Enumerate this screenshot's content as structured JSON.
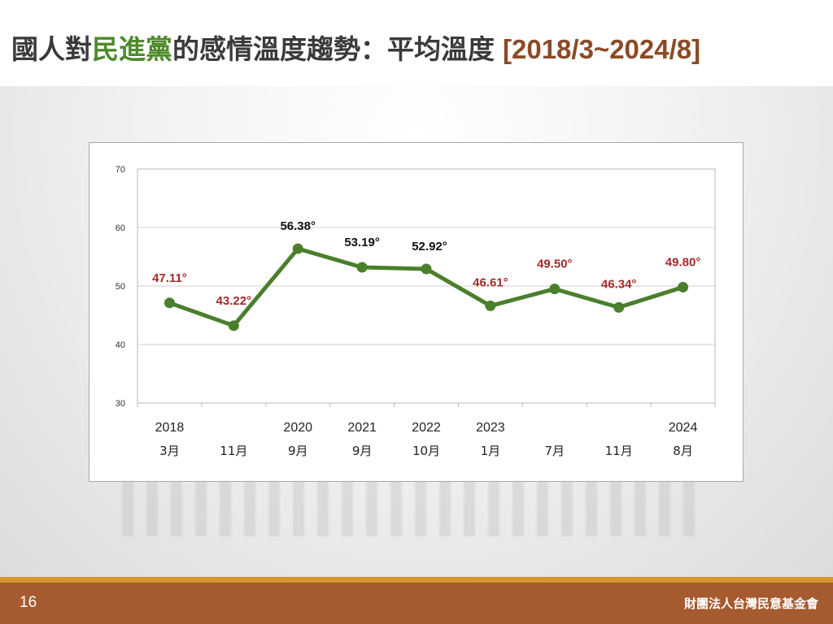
{
  "header": {
    "title_part1": "國人對",
    "title_party": "民進黨",
    "title_part2": "的感情溫度趨勢：平均溫度",
    "title_range": "[2018/3~2024/8]"
  },
  "footer": {
    "page_number": "16",
    "organization": "財團法人台灣民意基金會"
  },
  "colors": {
    "title_text": "#3a3a3a",
    "party_green": "#4f8a2a",
    "range_brown": "#8a4a26",
    "line_green": "#4a7f2b",
    "label_red": "#a52a2a",
    "label_black": "#111111",
    "footer_brown": "#a65a2f",
    "footer_gold": "#d4962d"
  },
  "chart_data": {
    "type": "line",
    "ylim": [
      30,
      70
    ],
    "yticks": [
      "30",
      "40",
      "50",
      "60",
      "70"
    ],
    "categories": [
      {
        "year": "2018",
        "month": "3月"
      },
      {
        "year": "",
        "month": "11月"
      },
      {
        "year": "2020",
        "month": "9月"
      },
      {
        "year": "2021",
        "month": "9月"
      },
      {
        "year": "2022",
        "month": "10月"
      },
      {
        "year": "2023",
        "month": "1月"
      },
      {
        "year": "",
        "month": "7月"
      },
      {
        "year": "",
        "month": "11月"
      },
      {
        "year": "2024",
        "month": "8月"
      }
    ],
    "values": [
      47.11,
      43.22,
      56.38,
      53.19,
      52.92,
      46.61,
      49.5,
      46.34,
      49.8
    ],
    "data_labels": [
      "47.11°",
      "43.22°",
      "56.38°",
      "53.19°",
      "52.92°",
      "46.61°",
      "49.50°",
      "46.34°",
      "49.80°"
    ],
    "label_colors": [
      "red",
      "red",
      "black",
      "black",
      "black",
      "red",
      "red",
      "red",
      "red"
    ],
    "grid": true,
    "legend": "none"
  }
}
